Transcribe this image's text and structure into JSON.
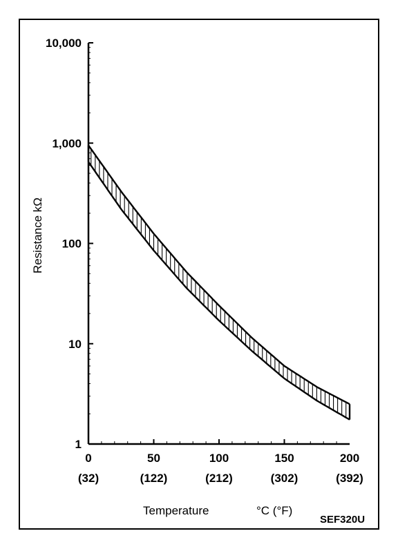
{
  "chart_data": {
    "type": "area",
    "title": "",
    "figure_code": "SEF320U",
    "xlabel": "Temperature",
    "xunit": "°C (°F)",
    "ylabel": "Resistance kΩ",
    "yscale": "log",
    "xlim": [
      0,
      200
    ],
    "ylim": [
      1,
      10000
    ],
    "y_ticks": [
      1,
      10,
      100,
      1000,
      10000
    ],
    "y_tick_labels": [
      "1",
      "10",
      "100",
      "1,000",
      "10,000"
    ],
    "x_ticks": [
      0,
      50,
      100,
      150,
      200
    ],
    "x_tick_labels": [
      "0",
      "50",
      "100",
      "150",
      "200"
    ],
    "x_tick_labels_f": [
      "(32)",
      "(122)",
      "(212)",
      "(302)",
      "(392)"
    ],
    "grid": false,
    "legend": "none",
    "series": [
      {
        "x": [
          0,
          25,
          50,
          75,
          100,
          125,
          150,
          175,
          200
        ],
        "values": [
          950,
          330,
          125,
          52,
          24,
          11.5,
          6,
          3.7,
          2.5
        ]
      },
      {
        "x": [
          0,
          25,
          50,
          75,
          100,
          125,
          150,
          175,
          200
        ],
        "values": [
          650,
          220,
          85,
          36,
          17,
          8.5,
          4.5,
          2.7,
          1.75
        ]
      }
    ]
  }
}
